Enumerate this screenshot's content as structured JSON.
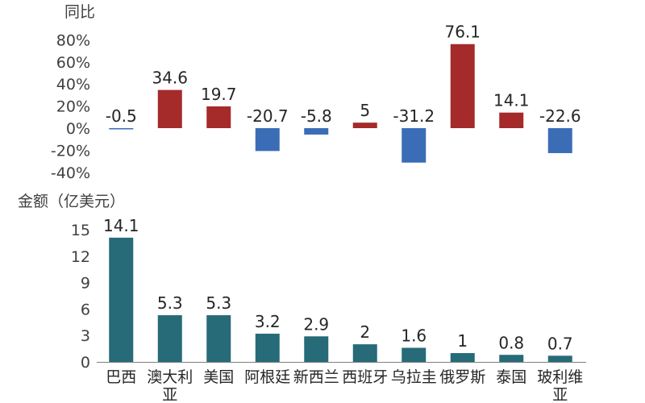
{
  "chart_data": [
    {
      "type": "bar",
      "ylabel": "同比",
      "categories": [
        "巴西",
        "澳大利亚",
        "美国",
        "阿根廷",
        "新西兰",
        "西班牙",
        "乌拉圭",
        "俄罗斯",
        "泰国",
        "玻利维亚"
      ],
      "values": [
        -0.5,
        34.6,
        19.7,
        -20.7,
        -5.8,
        5,
        -31.2,
        76.1,
        14.1,
        -22.6
      ],
      "ylim": [
        -40,
        80
      ],
      "yticks": [
        "80%",
        "60%",
        "40%",
        "20%",
        "0%",
        "-20%",
        "-40%"
      ],
      "colors": {
        "positive": "#A52A2A",
        "negative": "#3A6DB5"
      },
      "grid": false,
      "legend": "none"
    },
    {
      "type": "bar",
      "ylabel": "金额（亿美元）",
      "categories": [
        "巴西",
        "澳大利亚",
        "美国",
        "阿根廷",
        "新西兰",
        "西班牙",
        "乌拉圭",
        "俄罗斯",
        "泰国",
        "玻利维亚"
      ],
      "category_lines": [
        [
          "巴西"
        ],
        [
          "澳大利",
          "亚"
        ],
        [
          "美国"
        ],
        [
          "阿根廷"
        ],
        [
          "新西兰"
        ],
        [
          "西班牙"
        ],
        [
          "乌拉圭"
        ],
        [
          "俄罗斯"
        ],
        [
          "泰国"
        ],
        [
          "玻利维",
          "亚"
        ]
      ],
      "values": [
        14.1,
        5.3,
        5.3,
        3.2,
        2.9,
        2,
        1.6,
        1,
        0.8,
        0.7
      ],
      "ylim": [
        0,
        15
      ],
      "yticks": [
        "15",
        "12",
        "9",
        "6",
        "3",
        "0"
      ],
      "colors": {
        "bar": "#266B77",
        "axis": "#7F7F7F"
      },
      "grid": false,
      "legend": "none"
    }
  ]
}
